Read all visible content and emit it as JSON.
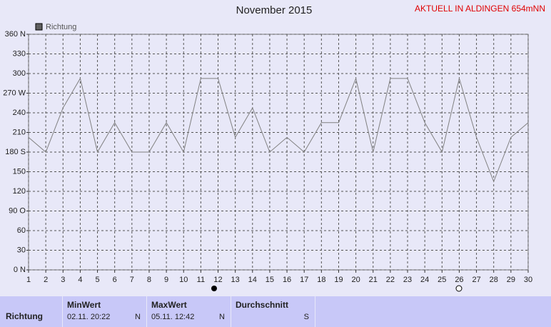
{
  "chart_data": {
    "type": "line",
    "title": "November 2015",
    "subtitle": "AKTUELL IN ALDINGEN 654mNN",
    "x": [
      1,
      2,
      3,
      4,
      5,
      6,
      7,
      8,
      9,
      10,
      11,
      12,
      13,
      14,
      15,
      16,
      17,
      18,
      19,
      20,
      21,
      22,
      23,
      24,
      25,
      26,
      27,
      28,
      29,
      30
    ],
    "xlim": [
      1,
      30
    ],
    "xticks": [
      1,
      2,
      3,
      4,
      5,
      6,
      7,
      8,
      9,
      10,
      11,
      12,
      13,
      14,
      15,
      16,
      17,
      18,
      19,
      20,
      21,
      22,
      23,
      24,
      25,
      26,
      27,
      28,
      29,
      30
    ],
    "series": [
      {
        "name": "Richtung",
        "color": "#808080",
        "values": [
          202.5,
          180,
          247.5,
          292.5,
          180,
          225,
          180,
          180,
          225,
          180,
          292.5,
          292.5,
          202.5,
          247.5,
          180,
          202.5,
          180,
          225,
          225,
          292.5,
          180,
          292.5,
          292.5,
          225,
          180,
          292.5,
          202.5,
          135,
          202.5,
          225
        ]
      }
    ],
    "ylim": [
      0,
      360
    ],
    "yticks": [
      {
        "value": 0,
        "label": "0 N"
      },
      30,
      60,
      {
        "value": 90,
        "label": "90 O"
      },
      120,
      150,
      {
        "value": 180,
        "label": "180 S"
      },
      210,
      240,
      {
        "value": 270,
        "label": "270 W"
      },
      300,
      330,
      {
        "value": 360,
        "label": "360 N"
      }
    ],
    "grid": true
  },
  "table": {
    "row_label": "Richtung",
    "headers": [
      "MinWert",
      "MaxWert",
      "Durchschnitt"
    ],
    "cells": [
      [
        "02.11.  20:22",
        "N"
      ],
      [
        "05.11.  12:42",
        "N"
      ],
      [
        "",
        "S"
      ]
    ]
  }
}
